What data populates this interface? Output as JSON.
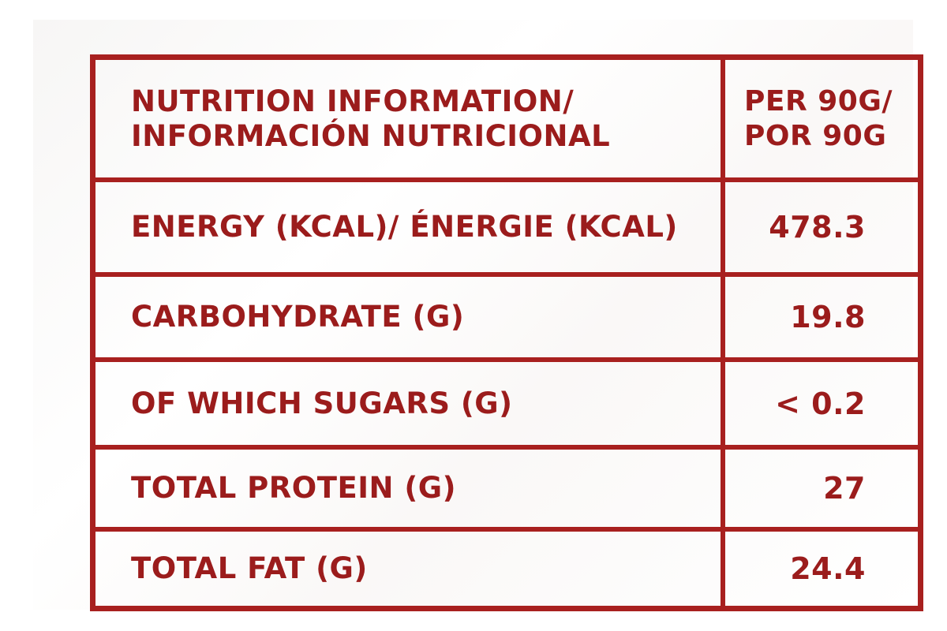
{
  "header": {
    "label_line1": "NUTRITION INFORMATION/",
    "label_line2": "INFORMACIÓN NUTRICIONAL",
    "value_line1": "PER 90G/",
    "value_line2": "POR 90G"
  },
  "rows": [
    {
      "label": "ENERGY (KCAL)/ ÉNERGIE (KCAL)",
      "value": "478.3"
    },
    {
      "label": "CARBOHYDRATE (G)",
      "value": "19.8"
    },
    {
      "label": "OF WHICH SUGARS (G)",
      "value": "< 0.2"
    },
    {
      "label": "TOTAL PROTEIN (G)",
      "value": "27"
    },
    {
      "label": "TOTAL FAT (G)",
      "value": "24.4"
    }
  ],
  "colors": {
    "accent": "#a8201f",
    "text": "#9b1c1c",
    "background": "#ffffff"
  }
}
